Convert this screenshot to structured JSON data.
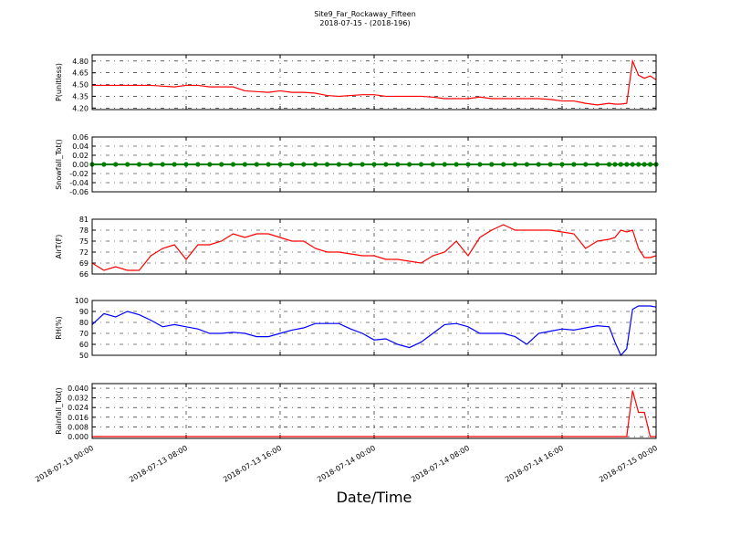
{
  "chart_data": {
    "type": "line",
    "title": "Site9_Far_Rockaway_Fifteen",
    "subtitle": "2018-07-15 - (2018-196)",
    "xlabel": "Date/Time",
    "grid": true,
    "x": [
      "2018-07-13 00:00",
      "2018-07-13 01:00",
      "2018-07-13 02:00",
      "2018-07-13 03:00",
      "2018-07-13 04:00",
      "2018-07-13 05:00",
      "2018-07-13 06:00",
      "2018-07-13 07:00",
      "2018-07-13 08:00",
      "2018-07-13 09:00",
      "2018-07-13 10:00",
      "2018-07-13 11:00",
      "2018-07-13 12:00",
      "2018-07-13 13:00",
      "2018-07-13 14:00",
      "2018-07-13 15:00",
      "2018-07-13 16:00",
      "2018-07-13 17:00",
      "2018-07-13 18:00",
      "2018-07-13 19:00",
      "2018-07-13 20:00",
      "2018-07-13 21:00",
      "2018-07-13 22:00",
      "2018-07-13 23:00",
      "2018-07-14 00:00",
      "2018-07-14 01:00",
      "2018-07-14 02:00",
      "2018-07-14 03:00",
      "2018-07-14 04:00",
      "2018-07-14 05:00",
      "2018-07-14 06:00",
      "2018-07-14 07:00",
      "2018-07-14 08:00",
      "2018-07-14 09:00",
      "2018-07-14 10:00",
      "2018-07-14 11:00",
      "2018-07-14 12:00",
      "2018-07-14 13:00",
      "2018-07-14 14:00",
      "2018-07-14 15:00",
      "2018-07-14 16:00",
      "2018-07-14 17:00",
      "2018-07-14 18:00",
      "2018-07-14 19:00",
      "2018-07-14 20:00",
      "2018-07-14 20:30",
      "2018-07-14 21:00",
      "2018-07-14 21:30",
      "2018-07-14 22:00",
      "2018-07-14 22:30",
      "2018-07-14 23:00",
      "2018-07-14 23:30",
      "2018-07-15 00:00"
    ],
    "xlim": [
      "2018-07-13 00:00",
      "2018-07-15 00:00"
    ],
    "xticks": [
      "2018-07-13 00:00",
      "2018-07-13 08:00",
      "2018-07-13 16:00",
      "2018-07-14 00:00",
      "2018-07-14 08:00",
      "2018-07-14 16:00",
      "2018-07-15 00:00"
    ],
    "panels": [
      {
        "ylabel": "P(unitless)",
        "ylim": [
          4.18,
          4.88
        ],
        "yticks": [
          {
            "value": 4.2,
            "label": "4.20"
          },
          {
            "value": 4.35,
            "label": "4.35"
          },
          {
            "value": 4.5,
            "label": "4.50"
          },
          {
            "value": 4.65,
            "label": "4.65"
          },
          {
            "value": 4.8,
            "label": "4.80"
          }
        ],
        "series": [
          {
            "color": "#ff0000",
            "values": [
              4.49,
              4.49,
              4.49,
              4.49,
              4.49,
              4.49,
              4.48,
              4.47,
              4.49,
              4.49,
              4.47,
              4.47,
              4.47,
              4.42,
              4.41,
              4.4,
              4.42,
              4.4,
              4.4,
              4.39,
              4.36,
              4.35,
              4.36,
              4.37,
              4.37,
              4.35,
              4.35,
              4.35,
              4.35,
              4.34,
              4.32,
              4.32,
              4.32,
              4.34,
              4.32,
              4.32,
              4.32,
              4.32,
              4.32,
              4.31,
              4.29,
              4.29,
              4.26,
              4.24,
              4.26,
              4.25,
              4.25,
              4.26,
              4.8,
              4.62,
              4.58,
              4.61,
              4.56
            ]
          }
        ]
      },
      {
        "ylabel": "Snowfall_Tot()",
        "ylim": [
          -0.06,
          0.06
        ],
        "yticks": [
          {
            "value": -0.06,
            "label": "-0.06"
          },
          {
            "value": -0.04,
            "label": "-0.04"
          },
          {
            "value": -0.02,
            "label": "-0.02"
          },
          {
            "value": 0,
            "label": "0.00"
          },
          {
            "value": 0.02,
            "label": "0.02"
          },
          {
            "value": 0.04,
            "label": "0.04"
          },
          {
            "value": 0.06,
            "label": "0.06"
          }
        ],
        "markers": true,
        "series": [
          {
            "color": "#008000",
            "values": [
              0,
              0,
              0,
              0,
              0,
              0,
              0,
              0,
              0,
              0,
              0,
              0,
              0,
              0,
              0,
              0,
              0,
              0,
              0,
              0,
              0,
              0,
              0,
              0,
              0,
              0,
              0,
              0,
              0,
              0,
              0,
              0,
              0,
              0,
              0,
              0,
              0,
              0,
              0,
              0,
              0,
              0,
              0,
              0,
              0,
              0,
              0,
              0,
              0,
              0,
              0,
              0,
              0
            ]
          }
        ]
      },
      {
        "ylabel": "AirT(F)",
        "ylim": [
          66,
          81
        ],
        "yticks": [
          66,
          69,
          72,
          75,
          78,
          81
        ],
        "series": [
          {
            "color": "#ff0000",
            "values": [
              69,
              67,
              68,
              67,
              67,
              71,
              73,
              74,
              70,
              74,
              74,
              75,
              77,
              76,
              77,
              77,
              76,
              75,
              75,
              73,
              72,
              72,
              71.5,
              71,
              71,
              70,
              70,
              69.5,
              69,
              71,
              72,
              75,
              71,
              76,
              78,
              79.5,
              78,
              78,
              78,
              78,
              77.5,
              77,
              73,
              75,
              75.5,
              76,
              78,
              77.5,
              78,
              73,
              70.5,
              70.5,
              71
            ]
          }
        ]
      },
      {
        "ylabel": "RH(%)",
        "ylim": [
          50,
          100
        ],
        "yticks": [
          50,
          60,
          70,
          80,
          90,
          100
        ],
        "series": [
          {
            "color": "#0000ff",
            "values": [
              78,
              88,
              85,
              90,
              87,
              82,
              76,
              78,
              76,
              74,
              70,
              70,
              71,
              70,
              67,
              67,
              70,
              73,
              75,
              79,
              79,
              79,
              74,
              70,
              64,
              65,
              60,
              57,
              62,
              70,
              78,
              79,
              76,
              70,
              70,
              70,
              67,
              60,
              70,
              72,
              74,
              73,
              75,
              77,
              76,
              62,
              50,
              56,
              92,
              95,
              95,
              95,
              94
            ]
          }
        ]
      },
      {
        "ylabel": "Rainfall_Tot()",
        "ylim": [
          -0.0015,
          0.0438
        ],
        "yticks": [
          {
            "value": 0,
            "label": "0.000"
          },
          {
            "value": 0.008,
            "label": "0.008"
          },
          {
            "value": 0.016,
            "label": "0.016"
          },
          {
            "value": 0.024,
            "label": "0.024"
          },
          {
            "value": 0.032,
            "label": "0.032"
          },
          {
            "value": 0.04,
            "label": "0.040"
          }
        ],
        "series": [
          {
            "color": "#ff0000",
            "values": [
              0,
              0,
              0,
              0,
              0,
              0,
              0,
              0,
              0,
              0,
              0,
              0,
              0,
              0,
              0,
              0,
              0,
              0,
              0,
              0,
              0,
              0,
              0,
              0,
              0,
              0,
              0,
              0,
              0,
              0,
              0,
              0,
              0,
              0,
              0,
              0,
              0,
              0,
              0,
              0,
              0,
              0,
              0,
              0,
              0,
              0,
              0,
              0,
              0.038,
              0.02,
              0.02,
              0,
              0
            ]
          }
        ]
      }
    ]
  }
}
